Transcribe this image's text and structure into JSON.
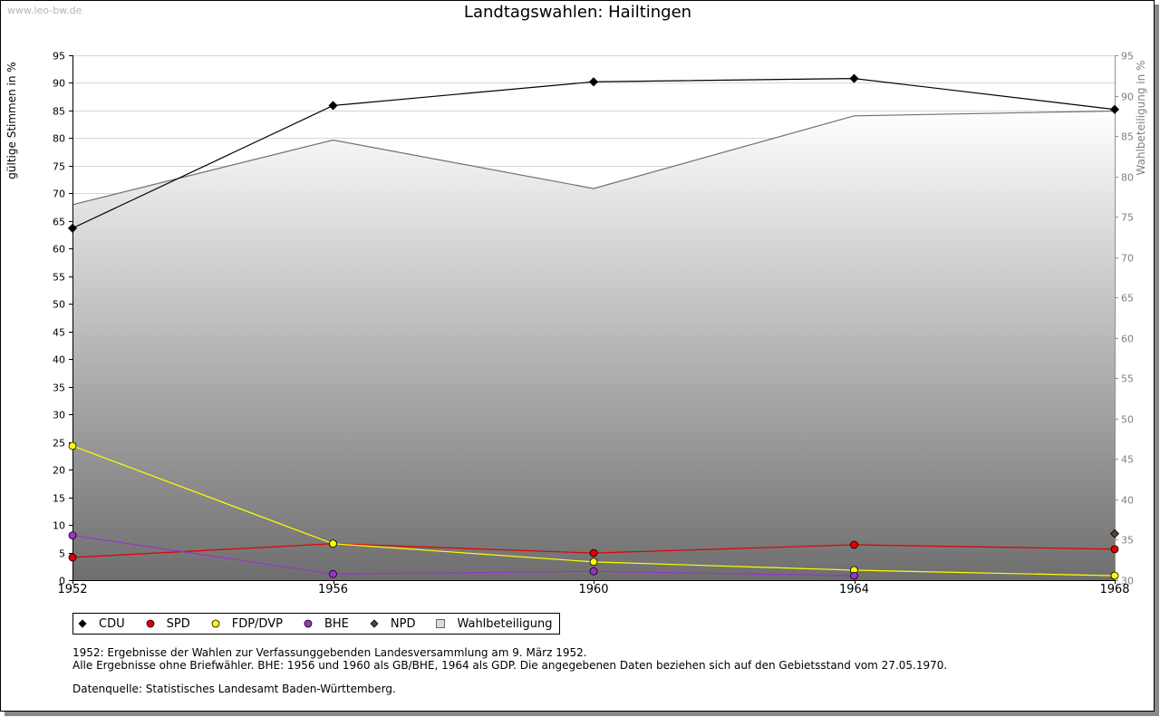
{
  "watermark": "www.leo-bw.de",
  "notes": {
    "line1": "1952: Ergebnisse der Wahlen zur Verfassunggebenden Landesversammlung am 9. März 1952.",
    "line2": "Alle Ergebnisse ohne Briefwähler. BHE: 1956 und 1960 als GB/BHE, 1964 als GDP. Die angegebenen Daten beziehen sich auf den Gebietsstand vom 27.05.1970.",
    "source": "Datenquelle: Statistisches Landesamt Baden-Württemberg."
  },
  "chart_data": {
    "type": "line",
    "title": "Landtagswahlen: Hailtingen",
    "ylabel": "gültige Stimmen in %",
    "y2label": "Wahlbeteiligung in %",
    "x": [
      1952,
      1956,
      1960,
      1964,
      1968
    ],
    "ylim": [
      0,
      95
    ],
    "yticks": [
      0,
      5,
      10,
      15,
      20,
      25,
      30,
      35,
      40,
      45,
      50,
      55,
      60,
      65,
      70,
      75,
      80,
      85,
      90,
      95
    ],
    "y2lim": [
      30,
      95
    ],
    "y2ticks": [
      30,
      35,
      40,
      45,
      50,
      55,
      60,
      65,
      70,
      75,
      80,
      85,
      90,
      95
    ],
    "grid": true,
    "legend_position": "bottom-left",
    "series": [
      {
        "name": "CDU",
        "color": "#000000",
        "values": [
          63.7,
          85.9,
          90.2,
          90.8,
          85.2
        ]
      },
      {
        "name": "SPD",
        "color": "#e00000",
        "values": [
          4.1,
          6.6,
          4.9,
          6.4,
          5.6
        ]
      },
      {
        "name": "FDP/DVP",
        "color": "#ffff00",
        "values": [
          24.3,
          6.6,
          3.3,
          1.8,
          0.8
        ]
      },
      {
        "name": "BHE",
        "color": "#9933cc",
        "values": [
          8.1,
          1.1,
          1.6,
          0.8,
          null
        ]
      },
      {
        "name": "NPD",
        "color": "#5c4033",
        "values": [
          null,
          null,
          null,
          null,
          8.4
        ]
      }
    ],
    "turnout": {
      "name": "Wahlbeteiligung",
      "axis": "right",
      "color": "#707070",
      "values": [
        76.5,
        84.5,
        78.5,
        87.5,
        88.1
      ]
    }
  }
}
